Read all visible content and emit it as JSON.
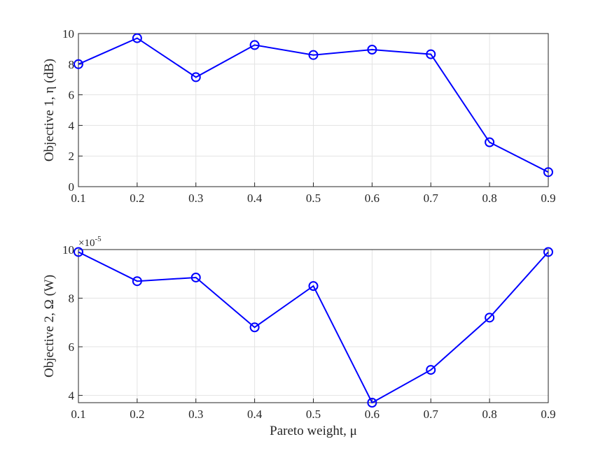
{
  "chart_data": [
    {
      "type": "line",
      "x": [
        0.1,
        0.2,
        0.3,
        0.4,
        0.5,
        0.6,
        0.7,
        0.8,
        0.9
      ],
      "series": [
        {
          "values": [
            8.0,
            9.7,
            7.15,
            9.25,
            8.6,
            8.95,
            8.65,
            2.9,
            0.95
          ],
          "color": "#0000ff",
          "marker": "circle"
        }
      ],
      "xticks": [
        "0.1",
        "0.2",
        "0.3",
        "0.4",
        "0.5",
        "0.6",
        "0.7",
        "0.8",
        "0.9"
      ],
      "yticks": [
        "0",
        "2",
        "4",
        "6",
        "8",
        "10"
      ],
      "xlim": [
        0.1,
        0.9
      ],
      "ylim": [
        0,
        10
      ],
      "ylabel": "Objective 1, η (dB)",
      "xlabel": "",
      "grid": true
    },
    {
      "type": "line",
      "x": [
        0.1,
        0.2,
        0.3,
        0.4,
        0.5,
        0.6,
        0.7,
        0.8,
        0.9
      ],
      "series": [
        {
          "values": [
            9.9,
            8.7,
            8.85,
            6.8,
            8.5,
            3.7,
            5.05,
            7.2,
            9.9
          ],
          "color": "#0000ff",
          "marker": "circle"
        }
      ],
      "xticks": [
        "0.1",
        "0.2",
        "0.3",
        "0.4",
        "0.5",
        "0.6",
        "0.7",
        "0.8",
        "0.9"
      ],
      "yticks": [
        "4",
        "6",
        "8",
        "10"
      ],
      "xlim": [
        0.1,
        0.9
      ],
      "ylim": [
        3.7,
        10
      ],
      "ylabel": "Objective 2, Ω (W)",
      "xlabel": "Pareto weight, μ",
      "multiplier": "×10",
      "multiplier_exponent": "-5",
      "grid": true
    }
  ]
}
